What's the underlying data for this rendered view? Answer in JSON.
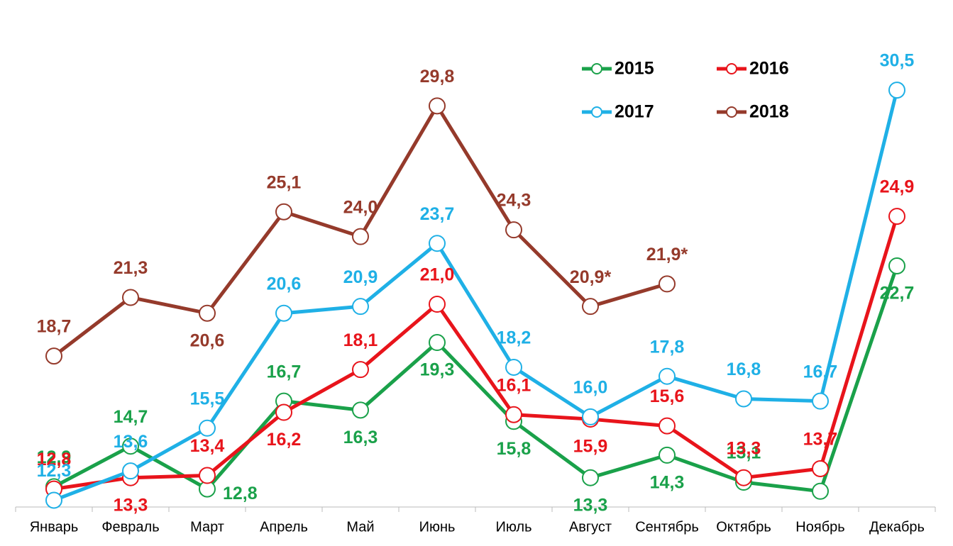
{
  "chart_data": {
    "type": "line",
    "categories": [
      "Январь",
      "Февраль",
      "Март",
      "Апрель",
      "Май",
      "Июнь",
      "Июль",
      "Август",
      "Сентябрь",
      "Октябрь",
      "Ноябрь",
      "Декабрь"
    ],
    "ylim": [
      12,
      34.5
    ],
    "legend": "top-right",
    "series": [
      {
        "name": "2015",
        "color": "#1aa14a",
        "values": [
          12.9,
          14.7,
          12.8,
          16.7,
          16.3,
          19.3,
          15.8,
          13.3,
          14.3,
          13.1,
          12.7,
          22.7
        ],
        "value_labels": [
          "12,9",
          "14,7",
          "12,8",
          "16,7",
          "16,3",
          "19,3",
          "15,8",
          "13,3",
          "14,3",
          "13,1",
          null,
          "22,7"
        ]
      },
      {
        "name": "2016",
        "color": "#e8141b",
        "values": [
          12.8,
          13.3,
          13.4,
          16.2,
          18.1,
          21.0,
          16.1,
          15.9,
          15.6,
          13.3,
          13.7,
          24.9
        ],
        "value_labels": [
          "12,8",
          "13,3",
          "13,4",
          "16,2",
          "18,1",
          "21,0",
          "16,1",
          "15,9",
          "15,6",
          "13,3",
          "13,7",
          "24,9"
        ]
      },
      {
        "name": "2017",
        "color": "#1fb0e6",
        "values": [
          12.3,
          13.6,
          15.5,
          20.6,
          20.9,
          23.7,
          18.2,
          16.0,
          17.8,
          16.8,
          16.7,
          30.5
        ],
        "value_labels": [
          "12,3",
          "13,6",
          "15,5",
          "20,6",
          "20,9",
          "23,7",
          "18,2",
          "16,0",
          "17,8",
          "16,8",
          "16,7",
          "30,5"
        ]
      },
      {
        "name": "2018",
        "color": "#953a2b",
        "values": [
          18.7,
          21.3,
          20.6,
          25.1,
          24.0,
          29.8,
          24.3,
          20.9,
          21.9,
          null,
          null,
          null
        ],
        "value_labels": [
          "18,7",
          "21,3",
          "20,6",
          "25,1",
          "24,0",
          "29,8",
          "24,3",
          "20,9*",
          "21,9*",
          null,
          null,
          null
        ]
      }
    ]
  }
}
